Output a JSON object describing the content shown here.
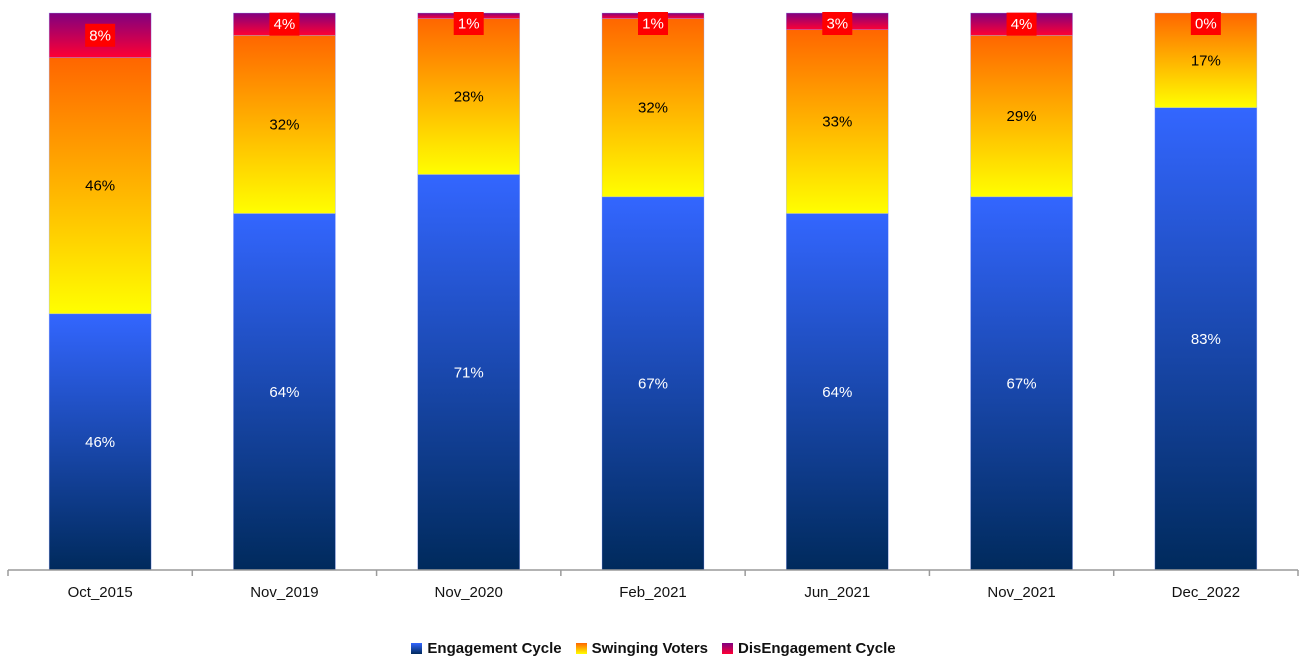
{
  "chart_data": {
    "type": "bar",
    "stacked": true,
    "percent_stacked": true,
    "categories": [
      "Oct_2015",
      "Nov_2019",
      "Nov_2020",
      "Feb_2021",
      "Jun_2021",
      "Nov_2021",
      "Dec_2022"
    ],
    "series": [
      {
        "name": "Engagement Cycle",
        "values": [
          46,
          64,
          71,
          67,
          64,
          67,
          83
        ],
        "labels": [
          "46%",
          "64%",
          "71%",
          "67%",
          "64%",
          "67%",
          "83%"
        ]
      },
      {
        "name": "Swinging Voters",
        "values": [
          46,
          32,
          28,
          32,
          33,
          29,
          17
        ],
        "labels": [
          "46%",
          "32%",
          "28%",
          "32%",
          "33%",
          "29%",
          "17%"
        ]
      },
      {
        "name": "DisEngagement Cycle",
        "values": [
          8,
          4,
          1,
          1,
          3,
          4,
          0
        ],
        "labels": [
          "8%",
          "4%",
          "1%",
          "1%",
          "3%",
          "4%",
          "0%"
        ]
      }
    ],
    "ylim": [
      0,
      100
    ],
    "grid": false,
    "legend": "bottom-center",
    "colors": {
      "engagement_top": "#3366ff",
      "engagement_bottom": "#002a5c",
      "swing_top": "#ff6600",
      "swing_bottom": "#ffff00",
      "disengage_top": "#800080",
      "disengage_bottom": "#ff0033",
      "label_box": "#ff0000"
    }
  }
}
